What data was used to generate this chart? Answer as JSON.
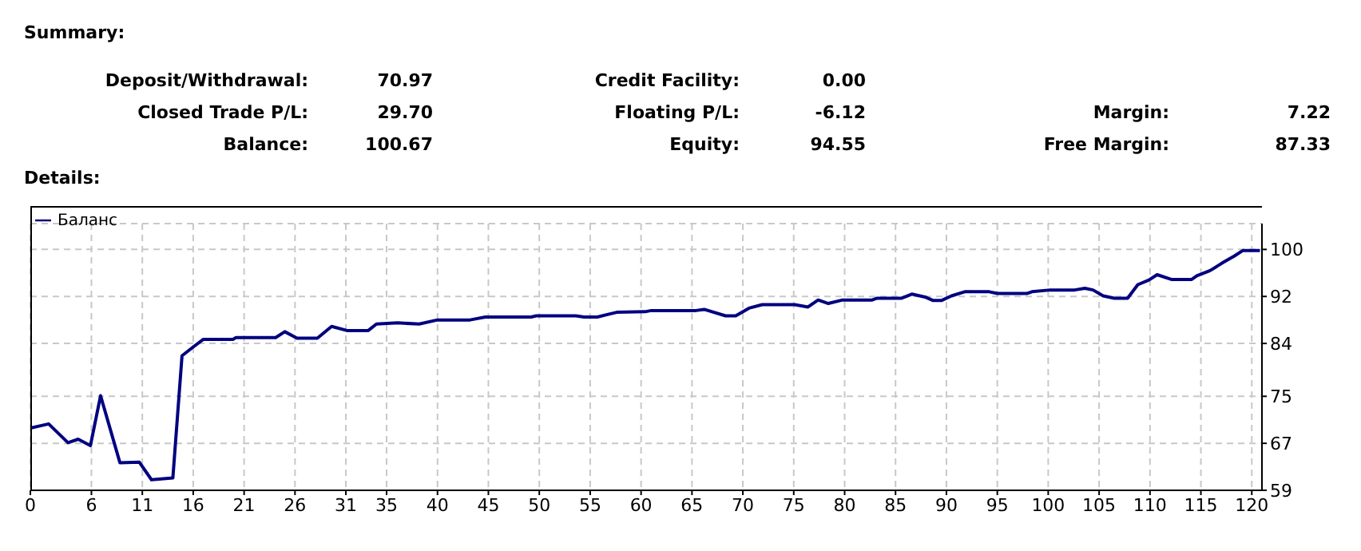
{
  "chart_data": {
    "type": "line",
    "title": "Details:",
    "annotations": [
      "Summary:",
      "Deposit/Withdrawal:",
      "70.97",
      "Credit Facility:",
      "0.00",
      "Closed Trade P/L:",
      "29.70",
      "Floating P/L:",
      "-6.12",
      "Margin:",
      "7.22",
      "Balance:",
      "100.67",
      "Equity:",
      "94.55",
      "Free Margin:",
      "87.33"
    ],
    "series": [
      {
        "name": "Баланс",
        "color": "#000080",
        "x": [
          0,
          1.8,
          3.7,
          4.7,
          5.9,
          6.9,
          8.8,
          10.7,
          11.9,
          14.0,
          14.9,
          16.0,
          17.0,
          19.9,
          20.2,
          24.1,
          25.0,
          26.2,
          28.2,
          29.6,
          31.1,
          33.2,
          34.0,
          36.1,
          38.2,
          40.0,
          43.2,
          44.7,
          49.2,
          49.7,
          53.6,
          54.4,
          55.7,
          57.6,
          60.4,
          61.0,
          65.4,
          66.2,
          68.3,
          69.3,
          70.6,
          71.9,
          75.1,
          76.4,
          77.4,
          78.4,
          79.8,
          82.7,
          83.2,
          85.6,
          86.6,
          87.9,
          88.7,
          89.5,
          90.5,
          91.8,
          94.2,
          95.0,
          97.9,
          98.4,
          100.2,
          102.6,
          103.6,
          104.4,
          105.4,
          106.5,
          107.8,
          108.8,
          109.9,
          110.7,
          112.1,
          114.1,
          114.6,
          115.9,
          117.2,
          118.3,
          119.1,
          120.8
        ],
        "values": [
          69.6,
          70.3,
          67.1,
          67.7,
          66.6,
          75.1,
          63.7,
          63.8,
          60.8,
          61.1,
          81.9,
          83.4,
          84.7,
          84.7,
          85.0,
          85.0,
          86.0,
          84.9,
          84.9,
          86.9,
          86.2,
          86.2,
          87.3,
          87.5,
          87.3,
          88.0,
          88.0,
          88.5,
          88.5,
          88.7,
          88.7,
          88.5,
          88.5,
          89.3,
          89.4,
          89.6,
          89.6,
          89.8,
          88.7,
          88.7,
          90.0,
          90.6,
          90.6,
          90.2,
          91.4,
          90.8,
          91.4,
          91.4,
          91.7,
          91.7,
          92.4,
          91.9,
          91.3,
          91.3,
          92.1,
          92.8,
          92.8,
          92.5,
          92.5,
          92.8,
          93.1,
          93.1,
          93.4,
          93.1,
          92.1,
          91.7,
          91.7,
          94.0,
          94.8,
          95.7,
          94.9,
          94.9,
          95.5,
          96.4,
          97.8,
          98.9,
          99.8,
          99.8
        ]
      }
    ],
    "xlim": [
      0,
      121
    ],
    "xticks": [
      0,
      6,
      11,
      16,
      21,
      26,
      31,
      35,
      40,
      45,
      50,
      55,
      60,
      65,
      70,
      75,
      80,
      85,
      90,
      95,
      100,
      105,
      110,
      115,
      120
    ],
    "ylim": [
      59,
      104.4
    ],
    "yticks": [
      59,
      67,
      75,
      84,
      92,
      100
    ],
    "grid": true,
    "legend": "top left",
    "marker": "none",
    "line_style": "solid"
  }
}
